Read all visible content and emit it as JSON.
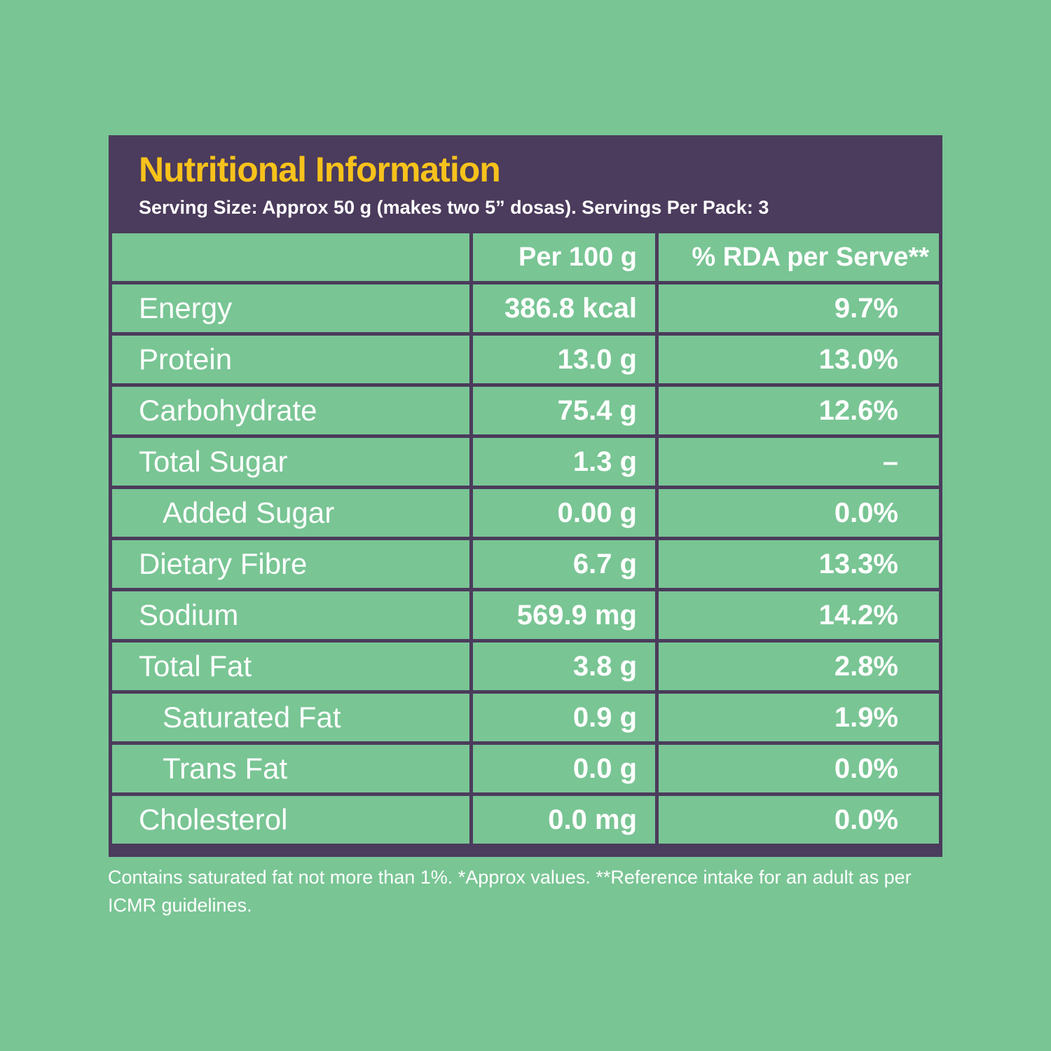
{
  "header": {
    "title": "Nutritional Information",
    "subtitle": "Serving Size: Approx 50 g (makes two 5” dosas). Servings Per Pack: 3"
  },
  "table": {
    "columns": [
      "Per 100 g",
      "% RDA per Serve**"
    ],
    "rows": [
      [
        "Energy",
        "386.8 kcal",
        "9.7%"
      ],
      [
        "Protein",
        "13.0 g",
        "13.0%"
      ],
      [
        "Carbohydrate",
        "75.4 g",
        "12.6%"
      ],
      [
        "Total Sugar",
        "1.3 g",
        "–"
      ],
      [
        "Added Sugar",
        "0.00 g",
        "0.0%"
      ],
      [
        "Dietary Fibre",
        "6.7 g",
        "13.3%"
      ],
      [
        "Sodium",
        "569.9 mg",
        "14.2%"
      ],
      [
        "Total Fat",
        "3.8 g",
        "2.8%"
      ],
      [
        "Saturated Fat",
        "0.9 g",
        "1.9%"
      ],
      [
        "Trans Fat",
        "0.0 g",
        "0.0%"
      ],
      [
        "Cholesterol",
        "0.0 mg",
        "0.0%"
      ]
    ]
  },
  "footer": {
    "text": "Contains saturated fat not more than 1%. *Approx values. **Reference intake for an adult as per ICMR guidelines."
  }
}
